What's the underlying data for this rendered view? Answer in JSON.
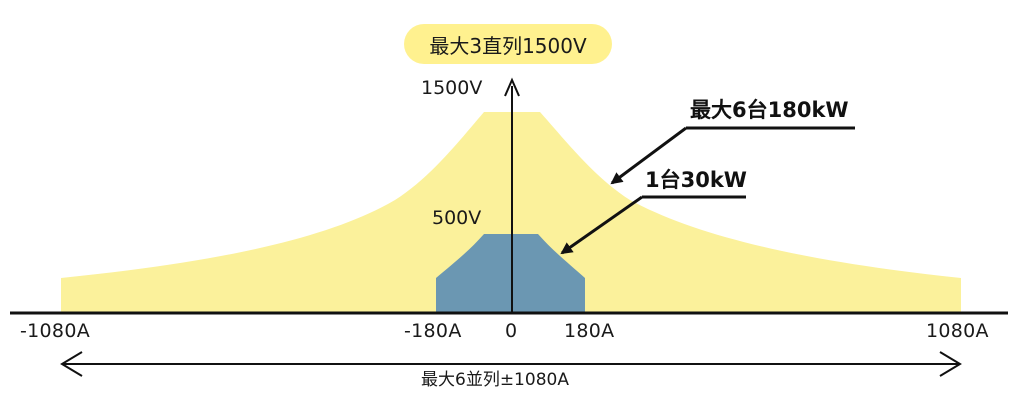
{
  "top_label": "最大3直列1500V",
  "y_ticks": {
    "v1500": "1500V",
    "v500": "500V"
  },
  "x_ticks": {
    "neg1080": "-1080A",
    "neg180": "-180A",
    "zero": "0",
    "pos180": "180A",
    "pos1080": "1080A"
  },
  "annotations": {
    "max_units": "最大6台180kW",
    "single_unit": "1台30kW"
  },
  "bottom_label": "最大6並列±1080A",
  "colors": {
    "large_region": "#fbf19b",
    "small_region": "#6b97b2",
    "badge": "#fff18f",
    "axis": "#111111"
  }
}
